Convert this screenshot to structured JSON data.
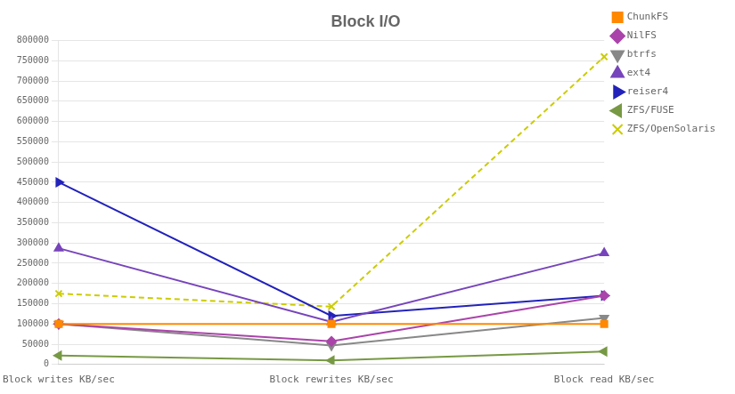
{
  "chart_data": {
    "type": "line",
    "title": "Block I/O",
    "categories": [
      "Block writes KB/sec",
      "Block rewrites KB/sec",
      "Block read KB/sec"
    ],
    "series": [
      {
        "name": "ChunkFS",
        "color": "#FF8800",
        "marker": "square",
        "line_style": "solid",
        "values": [
          100000,
          100000,
          100000
        ]
      },
      {
        "name": "NilFS",
        "color": "#AA44AA",
        "marker": "diamond",
        "line_style": "solid",
        "values": [
          100000,
          57000,
          170000
        ]
      },
      {
        "name": "btrfs",
        "color": "#888888",
        "marker": "triangle-down",
        "line_style": "solid",
        "values": [
          100000,
          47000,
          115000
        ]
      },
      {
        "name": "ext4",
        "color": "#7744BB",
        "marker": "triangle-up",
        "line_style": "solid",
        "values": [
          287000,
          105000,
          275000
        ]
      },
      {
        "name": "reiser4",
        "color": "#2222BB",
        "marker": "triangle-right",
        "line_style": "solid",
        "values": [
          450000,
          120000,
          170000
        ]
      },
      {
        "name": "ZFS/FUSE",
        "color": "#779944",
        "marker": "triangle-left",
        "line_style": "solid",
        "values": [
          22000,
          10000,
          32000
        ]
      },
      {
        "name": "ZFS/OpenSolaris",
        "color": "#CCCC00",
        "marker": "x",
        "line_style": "dashed",
        "values": [
          175000,
          143000,
          760000
        ]
      }
    ],
    "ylim": [
      0,
      800000
    ],
    "yticks": [
      0,
      50000,
      100000,
      150000,
      200000,
      250000,
      300000,
      350000,
      400000,
      450000,
      500000,
      550000,
      600000,
      650000,
      700000,
      750000,
      800000
    ],
    "grid": true,
    "legend": "right"
  }
}
